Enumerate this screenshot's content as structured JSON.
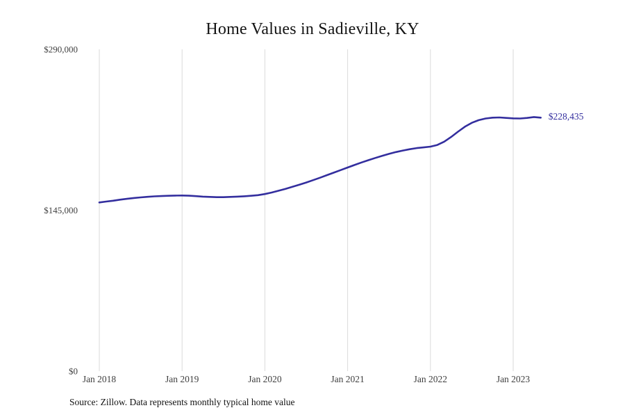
{
  "title": "Home Values in Sadieville, KY",
  "source_note": "Source: Zillow. Data represents monthly typical home value",
  "end_label": "$228,435",
  "colors": {
    "line": "#332E9E",
    "grid": "#DADADA",
    "tick_text": "#3F3F3F",
    "title_text": "#141414"
  },
  "chart_data": {
    "type": "line",
    "title": "Home Values in Sadieville, KY",
    "xlabel": "",
    "ylabel": "",
    "ylim": [
      0,
      290000
    ],
    "grid": "vertical-year-lines",
    "legend": false,
    "start_month": "Jan 2018",
    "frequency": "monthly",
    "end_value": 228435,
    "yticks": [
      {
        "value": 290000,
        "label": "$290,000"
      },
      {
        "value": 145000,
        "label": "$145,000"
      },
      {
        "value": 0,
        "label": "$0"
      }
    ],
    "xticks": [
      {
        "index": 0,
        "label": "Jan 2018"
      },
      {
        "index": 12,
        "label": "Jan 2019"
      },
      {
        "index": 24,
        "label": "Jan 2020"
      },
      {
        "index": 36,
        "label": "Jan 2021"
      },
      {
        "index": 48,
        "label": "Jan 2022"
      },
      {
        "index": 60,
        "label": "Jan 2023"
      }
    ],
    "values": [
      152000,
      152800,
      153600,
      154500,
      155300,
      156000,
      156600,
      157100,
      157500,
      157800,
      158000,
      158200,
      158300,
      158100,
      157700,
      157300,
      157000,
      156800,
      156800,
      157000,
      157300,
      157600,
      158000,
      158600,
      159600,
      161000,
      162600,
      164300,
      166100,
      168000,
      170000,
      172100,
      174300,
      176600,
      178900,
      181200,
      183500,
      185800,
      188000,
      190100,
      192100,
      194000,
      195800,
      197400,
      198800,
      200000,
      201000,
      201600,
      202300,
      203800,
      206800,
      211000,
      215800,
      220300,
      223800,
      226200,
      227700,
      228400,
      228600,
      228200,
      227800,
      227700,
      228200,
      229000,
      228435
    ]
  }
}
